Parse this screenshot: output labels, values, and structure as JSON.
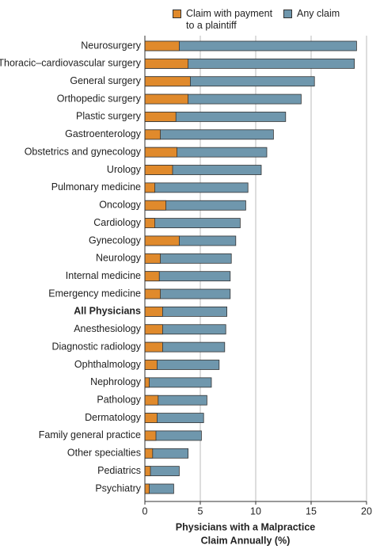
{
  "chart_data": {
    "type": "overlay_barh",
    "x_label": [
      "Physicians with a Malpractice",
      "Claim Annually (%)"
    ],
    "categories": [
      "Neurosurgery",
      "Thoracic–cardiovascular surgery",
      "General surgery",
      "Orthopedic surgery",
      "Plastic surgery",
      "Gastroenterology",
      "Obstetrics and gynecology",
      "Urology",
      "Pulmonary medicine",
      "Oncology",
      "Cardiology",
      "Gynecology",
      "Neurology",
      "Internal medicine",
      "Emergency medicine",
      "All Physicians",
      "Anesthesiology",
      "Diagnostic radiology",
      "Ophthalmology",
      "Nephrology",
      "Pathology",
      "Dermatology",
      "Family general practice",
      "Other specialties",
      "Pediatrics",
      "Psychiatry"
    ],
    "bold_categories": [
      15
    ],
    "series": [
      {
        "name": "Claim with payment to a plaintiff",
        "color": "#e08a2c",
        "values": [
          3.1,
          3.9,
          4.1,
          3.9,
          2.8,
          1.4,
          2.9,
          2.5,
          0.9,
          1.9,
          0.9,
          3.1,
          1.4,
          1.3,
          1.4,
          1.6,
          1.6,
          1.6,
          1.1,
          0.4,
          1.2,
          1.1,
          1.0,
          0.7,
          0.5,
          0.4
        ]
      },
      {
        "name": "Any claim",
        "color": "#6f97ad",
        "values": [
          19.1,
          18.9,
          15.3,
          14.1,
          12.7,
          11.6,
          11.0,
          10.5,
          9.3,
          9.1,
          8.6,
          8.2,
          7.8,
          7.7,
          7.7,
          7.4,
          7.3,
          7.2,
          6.7,
          6.0,
          5.6,
          5.3,
          5.1,
          3.9,
          3.1,
          2.6
        ]
      }
    ],
    "xlim": [
      0,
      20
    ],
    "xticks": [
      0,
      5,
      10,
      15,
      20
    ],
    "grid": true
  }
}
